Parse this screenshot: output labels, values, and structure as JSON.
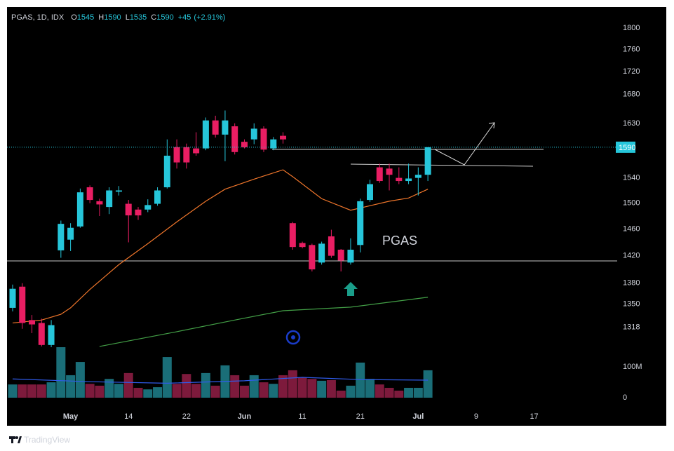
{
  "chart_data": {
    "type": "candlestick",
    "header": {
      "symbol": "PGAS, 1D, IDX",
      "labels": [
        "O",
        "H",
        "L",
        "C"
      ],
      "change": "+45",
      "change_pct": "(+2.91%)"
    },
    "annotation": "PGAS",
    "brand": "TradingView",
    "x": [
      0,
      1,
      2,
      3,
      4,
      5,
      6,
      7,
      8,
      9,
      10,
      11,
      12,
      13,
      14,
      15,
      16,
      17,
      18,
      19,
      20,
      21,
      22,
      23,
      24,
      25,
      26,
      27,
      28,
      29,
      30,
      31,
      32,
      33,
      34,
      35,
      36,
      37,
      38,
      39,
      40,
      41,
      42,
      43
    ],
    "open": [
      1345,
      1375,
      1328,
      1324,
      1294,
      1428,
      1444,
      1464,
      1525,
      1503,
      1494,
      1518,
      1499,
      1490,
      1490,
      1499,
      1525,
      1590,
      1590,
      1588,
      1588,
      1635,
      1611,
      1625,
      1599,
      1603,
      1621,
      1588,
      1609,
      1469,
      1439,
      1436,
      1410,
      1449,
      1429,
      1410,
      1436,
      1505,
      1557,
      1555,
      1540,
      1535,
      1540,
      1545
    ],
    "high": [
      1378,
      1380,
      1335,
      1330,
      1328,
      1473,
      1469,
      1523,
      1528,
      1507,
      1525,
      1527,
      1505,
      1494,
      1506,
      1525,
      1603,
      1603,
      1596,
      1615,
      1640,
      1643,
      1652,
      1630,
      1603,
      1630,
      1625,
      1607,
      1615,
      1471,
      1441,
      1438,
      1441,
      1459,
      1430,
      1446,
      1507,
      1537,
      1563,
      1563,
      1557,
      1563,
      1557,
      1590
    ],
    "low": [
      1340,
      1316,
      1310,
      1292,
      1291,
      1417,
      1427,
      1462,
      1500,
      1480,
      1483,
      1512,
      1440,
      1474,
      1486,
      1496,
      1523,
      1555,
      1555,
      1576,
      1585,
      1606,
      1567,
      1578,
      1588,
      1595,
      1582,
      1585,
      1596,
      1429,
      1431,
      1397,
      1407,
      1417,
      1397,
      1407,
      1425,
      1502,
      1532,
      1520,
      1530,
      1530,
      1512,
      1535
    ],
    "close": [
      1372,
      1324,
      1322,
      1294,
      1321,
      1468,
      1462,
      1517,
      1505,
      1498,
      1520,
      1520,
      1481,
      1481,
      1497,
      1520,
      1576,
      1565,
      1565,
      1580,
      1635,
      1611,
      1635,
      1582,
      1590,
      1621,
      1586,
      1603,
      1603,
      1433,
      1433,
      1400,
      1438,
      1420,
      1413,
      1429,
      1503,
      1530,
      1535,
      1545,
      1535,
      1539,
      1545,
      1590
    ],
    "xlim": [
      -0.58,
      62.6
    ],
    "xticks": [
      {
        "value": 6,
        "label": "May"
      },
      {
        "value": 12,
        "label": "14"
      },
      {
        "value": 18,
        "label": "22"
      },
      {
        "value": 24,
        "label": "Jun"
      },
      {
        "value": 30,
        "label": "11"
      },
      {
        "value": 36,
        "label": "21"
      },
      {
        "value": 42,
        "label": "Jul"
      },
      {
        "value": 48,
        "label": "9"
      },
      {
        "value": 54,
        "label": "17"
      }
    ],
    "ylim": [
      1291,
      1840
    ],
    "log": true,
    "yticks": [
      1800,
      1760,
      1720,
      1680,
      1630,
      1540,
      1500,
      1460,
      1420,
      1380,
      1350,
      1318
    ],
    "up_color": "#26c6da",
    "down_color": "#e91e63",
    "last_price_color": "#26c6da",
    "moving_averages": [
      {
        "color": "#f0762b",
        "x": [
          0,
          3,
          5,
          6,
          8,
          11,
          14,
          17,
          20,
          22,
          25,
          28,
          29,
          32,
          35,
          37,
          39,
          41,
          43
        ],
        "values": [
          1324,
          1328,
          1336,
          1345,
          1371,
          1407,
          1438,
          1471,
          1503,
          1522,
          1538,
          1553,
          1542,
          1507,
          1489,
          1496,
          1503,
          1508,
          1522
        ]
      },
      {
        "color": "#43a047",
        "x": [
          9,
          17,
          23,
          28,
          35,
          43
        ],
        "values": [
          1292,
          1312,
          1328,
          1341,
          1346,
          1360
        ]
      }
    ],
    "volume": {
      "values": [
        43000000,
        43000000,
        43000000,
        43000000,
        50000000,
        164000000,
        73000000,
        116000000,
        45000000,
        39000000,
        61000000,
        45000000,
        80000000,
        32000000,
        27000000,
        34000000,
        132000000,
        45000000,
        77000000,
        45000000,
        80000000,
        39000000,
        105000000,
        73000000,
        39000000,
        73000000,
        50000000,
        45000000,
        73000000,
        89000000,
        66000000,
        61000000,
        55000000,
        57000000,
        23000000,
        39000000,
        114000000,
        61000000,
        43000000,
        32000000,
        23000000,
        32000000,
        32000000,
        89000000
      ],
      "ylim": [
        0,
        164000000
      ],
      "yticks": [
        0,
        {
          "value": 100000000,
          "label": "100M"
        }
      ],
      "up_color": "#1a6e78",
      "down_color": "#7d1a3c",
      "ma": {
        "color": "#2f5bea",
        "x": [
          0,
          8,
          16,
          24,
          30,
          36,
          43
        ],
        "values": [
          61000000,
          52000000,
          47000000,
          55000000,
          66000000,
          59000000,
          57000000
        ]
      }
    }
  }
}
